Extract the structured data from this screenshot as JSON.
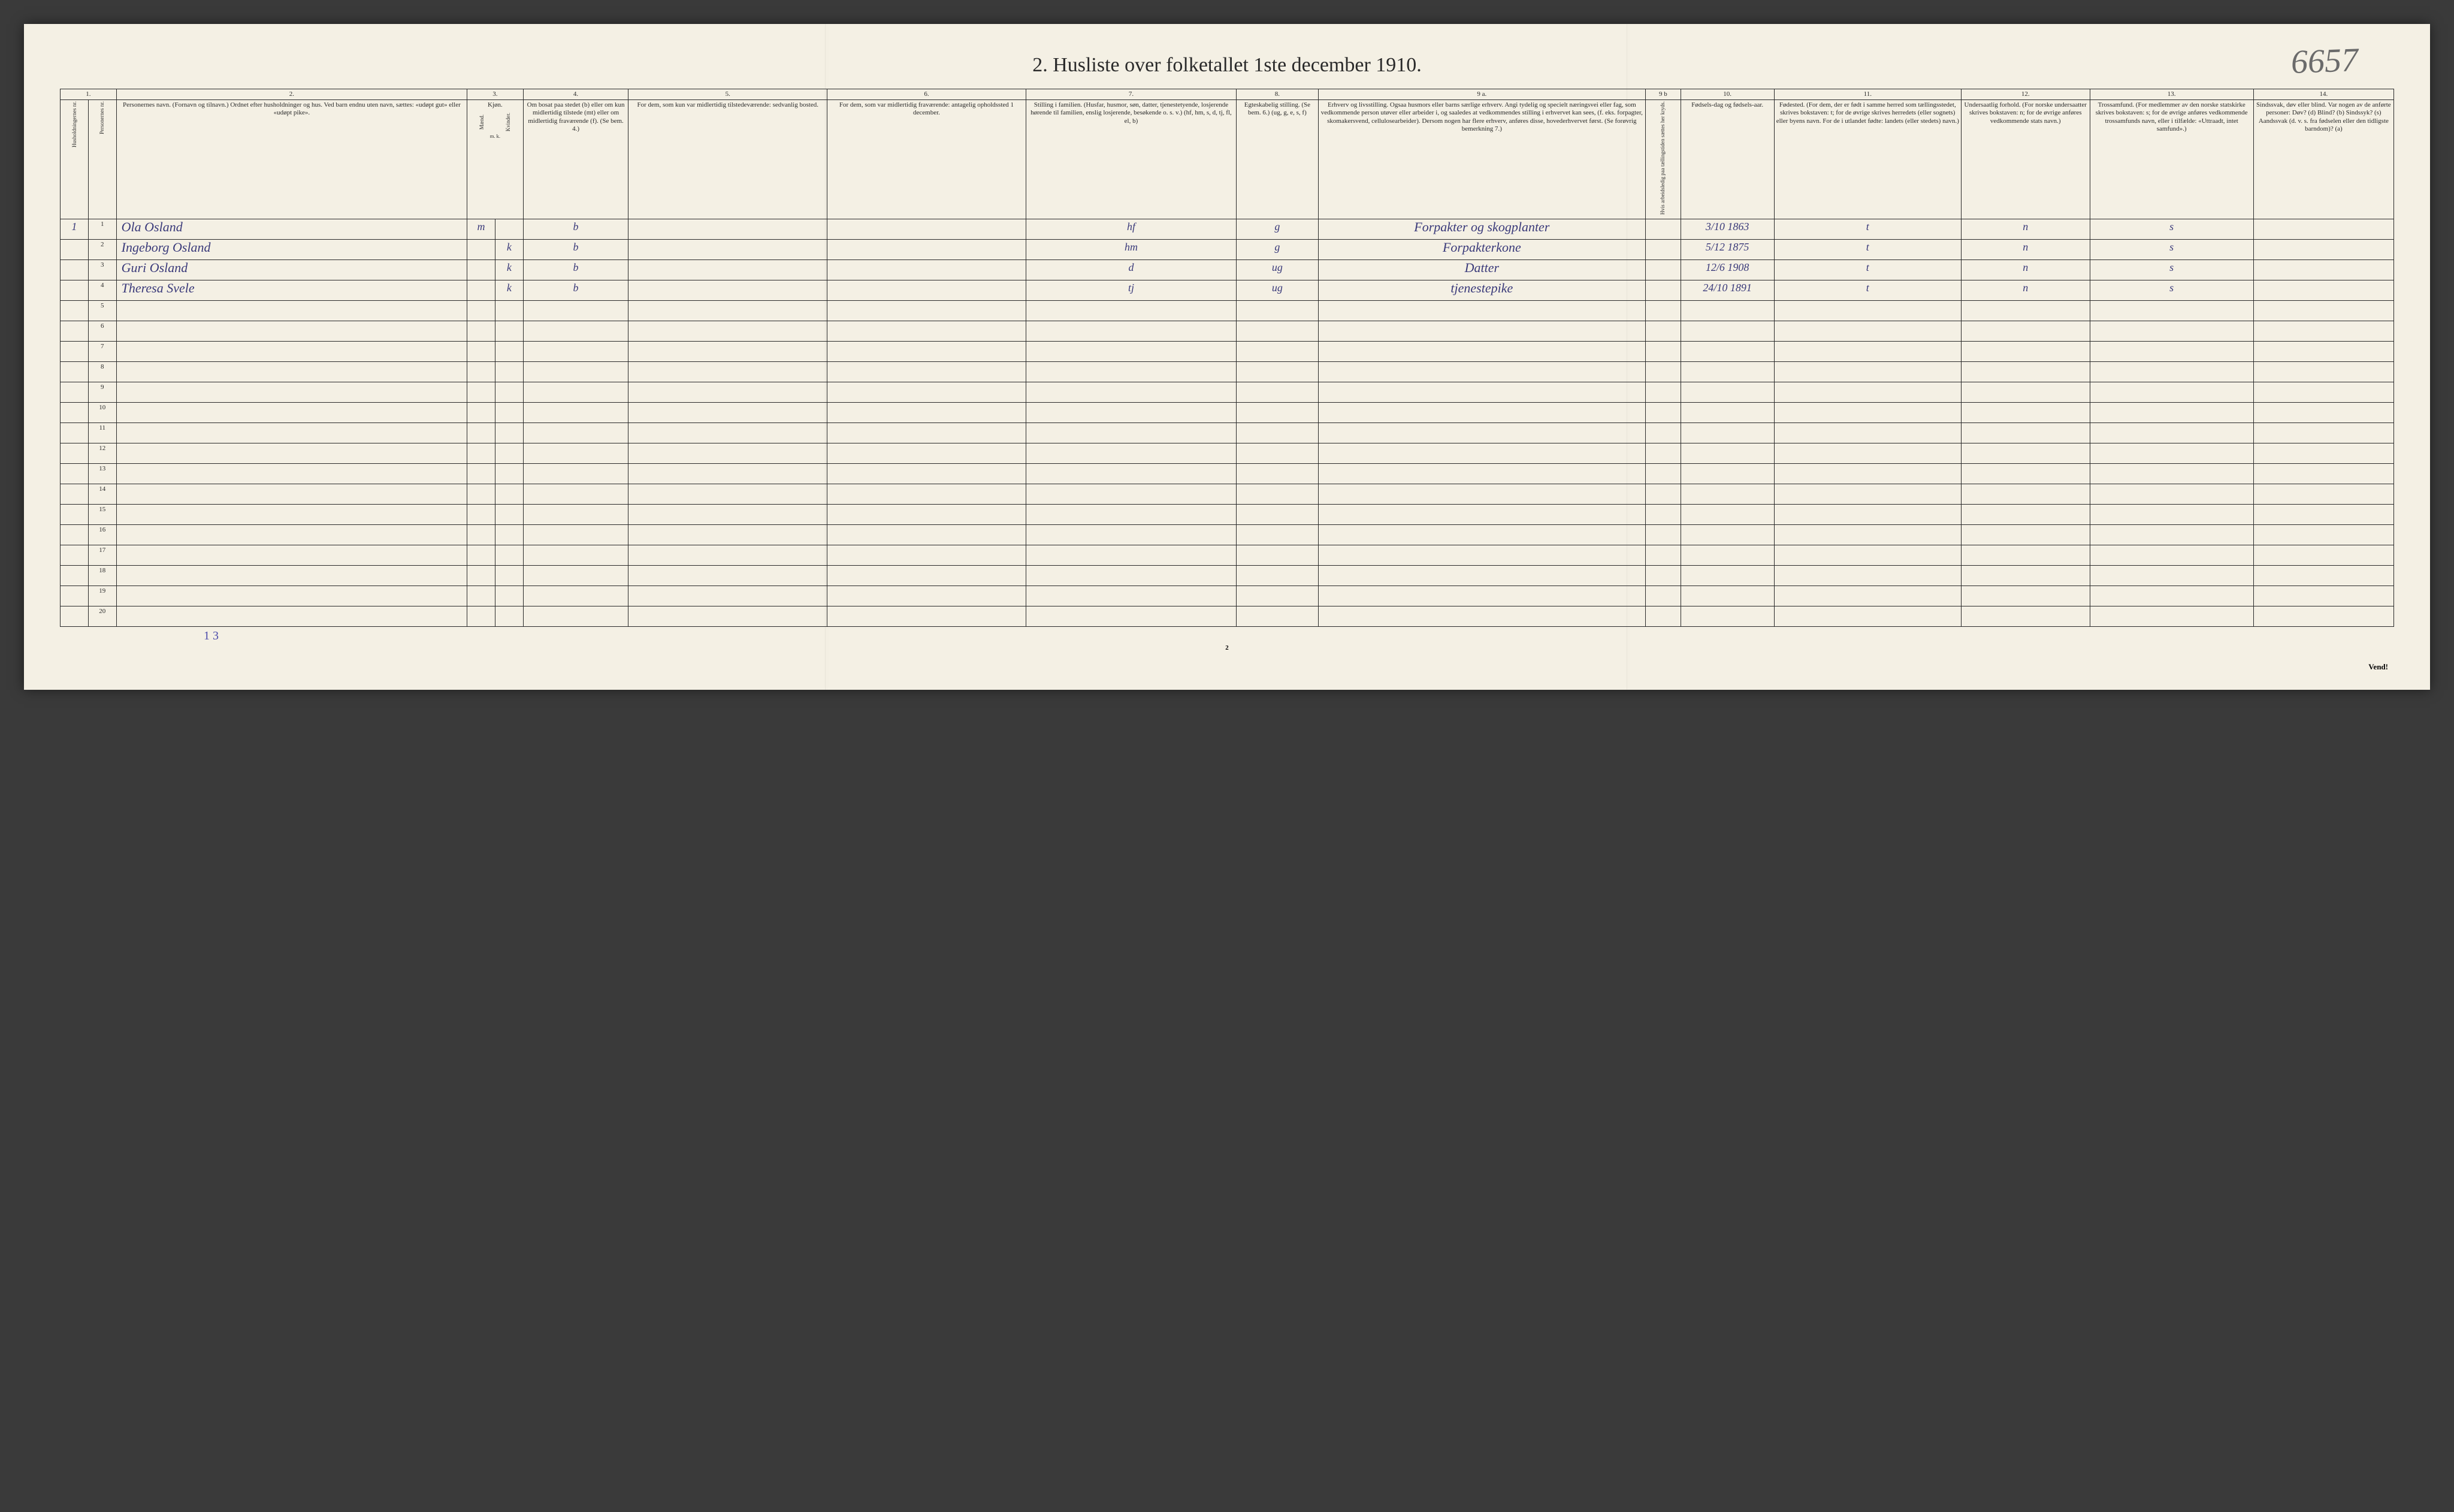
{
  "title": "2.  Husliste over folketallet 1ste december 1910.",
  "handwritten_corner": "6657",
  "page_number": "2",
  "vend": "Vend!",
  "footer_tally": "1   3",
  "colors": {
    "paper": "#f4f0e4",
    "ink": "#2a2a2a",
    "handwriting": "#3a3a7a",
    "pencil": "#6b6b6b",
    "background": "#3a3a3a"
  },
  "column_numbers": [
    "1.",
    "2.",
    "3.",
    "4.",
    "5.",
    "6.",
    "7.",
    "8.",
    "9 a.",
    "9 b",
    "10.",
    "11.",
    "12.",
    "13.",
    "14."
  ],
  "headers": {
    "c1a": "Husholdningernes nr.",
    "c1b": "Personernes nr.",
    "c2": "Personernes navn.\n(Fornavn og tilnavn.)\nOrdnet efter husholdninger og hus.\nVed barn endnu uten navn, sættes: «udøpt gut» eller «udøpt pike».",
    "c3": "Kjøn.",
    "c3m": "Mænd.",
    "c3k": "Kvinder.",
    "c3mk": "m.  k.",
    "c4": "Om bosat paa stedet (b) eller om kun midlertidig tilstede (mt) eller om midlertidig fraværende (f). (Se bem. 4.)",
    "c5": "For dem, som kun var midlertidig tilstedeværende:\nsedvanlig bosted.",
    "c6": "For dem, som var midlertidig fraværende:\nantagelig opholdssted 1 december.",
    "c7": "Stilling i familien.\n(Husfar, husmor, søn, datter, tjenestetyende, losjerende hørende til familien, enslig losjerende, besøkende o. s. v.)\n(hf, hm, s, d, tj, fl, el, b)",
    "c8": "Egteskabelig stilling.\n(Se bem. 6.)\n(ug, g, e, s, f)",
    "c9a": "Erhverv og livsstilling.\nOgsaa husmors eller barns særlige erhverv. Angi tydelig og specielt næringsvei eller fag, som vedkommende person utøver eller arbeider i, og saaledes at vedkommendes stilling i erhvervet kan sees, (f. eks. forpagter, skomakersvend, cellulosearbeider). Dersom nogen har flere erhverv, anføres disse, hovederhvervet først. (Se forøvrig bemerkning 7.)",
    "c9b": "Hvis arbeidsledig paa tællingstiden sættes her kryds.",
    "c10": "Fødsels-dag og fødsels-aar.",
    "c11": "Fødested.\n(For dem, der er født i samme herred som tællingsstedet, skrives bokstaven: t; for de øvrige skrives herredets (eller sognets) eller byens navn. For de i utlandet fødte: landets (eller stedets) navn.)",
    "c12": "Undersaatlig forhold.\n(For norske undersaatter skrives bokstaven: n; for de øvrige anføres vedkommende stats navn.)",
    "c13": "Trossamfund.\n(For medlemmer av den norske statskirke skrives bokstaven: s; for de øvrige anføres vedkommende trossamfunds navn, eller i tilfælde: «Uttraadt, intet samfund».)",
    "c14": "Sindssvak, døv eller blind.\nVar nogen av de anførte personer:\nDøv? (d)\nBlind? (b)\nSindssyk? (s)\nAandssvak (d. v. s. fra fødselen eller den tidligste barndom)? (a)"
  },
  "rows": [
    {
      "hh": "1",
      "pn": "1",
      "name": "Ola Osland",
      "m": "m",
      "k": "",
      "bosat": "b",
      "c5": "",
      "c6": "",
      "stilling": "hf",
      "egt": "g",
      "erhverv": "Forpakter og skogplanter",
      "c9b": "",
      "fodsel": "3/10 1863",
      "fodested": "t",
      "undersaat": "n",
      "tros": "s",
      "c14": ""
    },
    {
      "hh": "",
      "pn": "2",
      "name": "Ingeborg Osland",
      "m": "",
      "k": "k",
      "bosat": "b",
      "c5": "",
      "c6": "",
      "stilling": "hm",
      "egt": "g",
      "erhverv": "Forpakterkone",
      "c9b": "",
      "fodsel": "5/12 1875",
      "fodested": "t",
      "undersaat": "n",
      "tros": "s",
      "c14": ""
    },
    {
      "hh": "",
      "pn": "3",
      "name": "Guri Osland",
      "m": "",
      "k": "k",
      "bosat": "b",
      "c5": "",
      "c6": "",
      "stilling": "d",
      "egt": "ug",
      "erhverv": "Datter",
      "c9b": "",
      "fodsel": "12/6 1908",
      "fodested": "t",
      "undersaat": "n",
      "tros": "s",
      "c14": ""
    },
    {
      "hh": "",
      "pn": "4",
      "name": "Theresa Svele",
      "m": "",
      "k": "k",
      "bosat": "b",
      "c5": "",
      "c6": "",
      "stilling": "tj",
      "egt": "ug",
      "erhverv": "tjenestepike",
      "c9b": "",
      "fodsel": "24/10 1891",
      "fodested": "t",
      "undersaat": "n",
      "tros": "s",
      "c14": ""
    }
  ],
  "empty_row_count": 16,
  "row_labels": [
    "1",
    "2",
    "3",
    "4",
    "5",
    "6",
    "7",
    "8",
    "9",
    "10",
    "11",
    "12",
    "13",
    "14",
    "15",
    "16",
    "17",
    "18",
    "19",
    "20"
  ]
}
